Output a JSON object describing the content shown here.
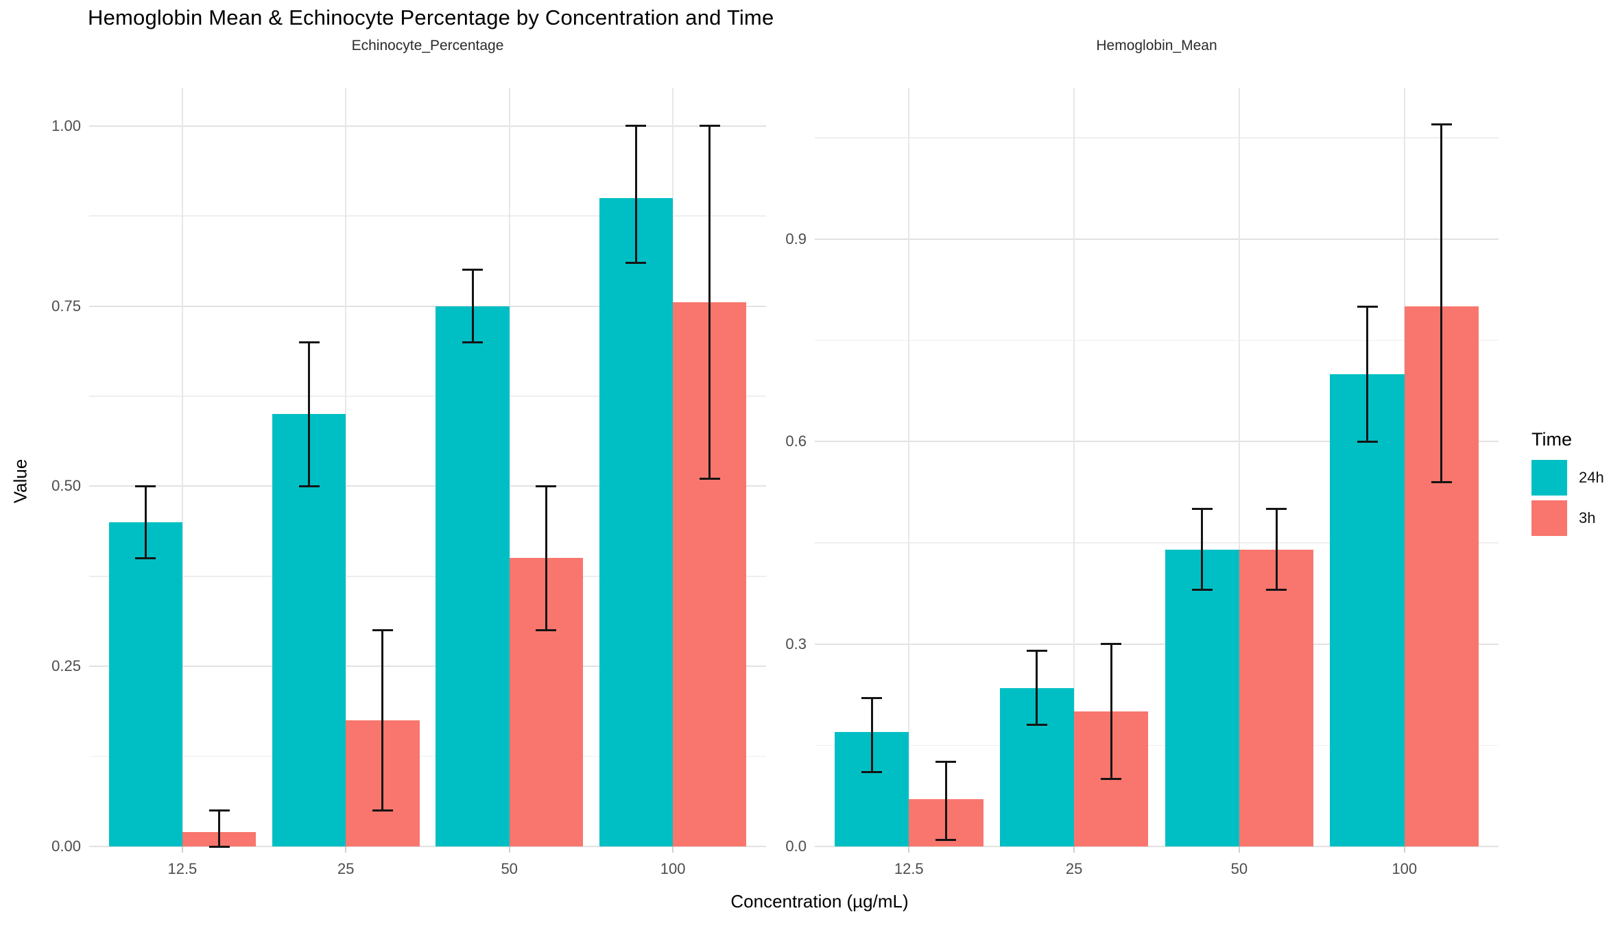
{
  "title": "Hemoglobin Mean & Echinocyte Percentage by Concentration and Time",
  "legend": {
    "title": "Time",
    "entries": [
      {
        "label": "24h",
        "color": "#00BFC4"
      },
      {
        "label": "3h",
        "color": "#F8766D"
      }
    ]
  },
  "chart_data": {
    "type": "bar",
    "title": "Hemoglobin Mean & Echinocyte Percentage by Concentration and Time",
    "xlabel": "Concentration (µg/mL)",
    "ylabel": "Value",
    "categories": [
      "12.5",
      "25",
      "50",
      "100"
    ],
    "grid": true,
    "legend_position": "right",
    "series_colors": [
      "#00BFC4",
      "#F8766D"
    ],
    "error_bar_color": "#141414",
    "facets": [
      {
        "label": "Echinocyte_Percentage",
        "ylim": [
          0,
          1.053
        ],
        "y_major_step": 0.25,
        "y_ticks": [
          {
            "v": 0,
            "label": "0.00"
          },
          {
            "v": 0.25,
            "label": "0.25"
          },
          {
            "v": 0.5,
            "label": "0.50"
          },
          {
            "v": 0.75,
            "label": "0.75"
          },
          {
            "v": 1,
            "label": "1.00"
          }
        ],
        "series": [
          {
            "name": "24h",
            "values": [
              0.45,
              0.6,
              0.75,
              0.9
            ],
            "err_low": [
              0.4,
              0.5,
              0.7,
              0.81
            ],
            "err_high": [
              0.5,
              0.7,
              0.8,
              1.0
            ]
          },
          {
            "name": "3h",
            "values": [
              0.02,
              0.175,
              0.4,
              0.755
            ],
            "err_low": [
              0.0,
              0.05,
              0.3,
              0.51
            ],
            "err_high": [
              0.05,
              0.3,
              0.5,
              1.0
            ]
          }
        ]
      },
      {
        "label": "Hemoglobin_Mean",
        "ylim": [
          0,
          1.124
        ],
        "y_major_step": 0.3,
        "y_ticks": [
          {
            "v": 0,
            "label": "0.0"
          },
          {
            "v": 0.3,
            "label": "0.3"
          },
          {
            "v": 0.6,
            "label": "0.6"
          },
          {
            "v": 0.9,
            "label": "0.9"
          }
        ],
        "series": [
          {
            "name": "24h",
            "values": [
              0.17,
              0.235,
              0.44,
              0.7
            ],
            "err_low": [
              0.11,
              0.18,
              0.38,
              0.6
            ],
            "err_high": [
              0.22,
              0.29,
              0.5,
              0.8
            ]
          },
          {
            "name": "3h",
            "values": [
              0.07,
              0.2,
              0.44,
              0.8
            ],
            "err_low": [
              0.01,
              0.1,
              0.38,
              0.54
            ],
            "err_high": [
              0.125,
              0.3,
              0.5,
              1.07
            ]
          }
        ]
      }
    ]
  }
}
